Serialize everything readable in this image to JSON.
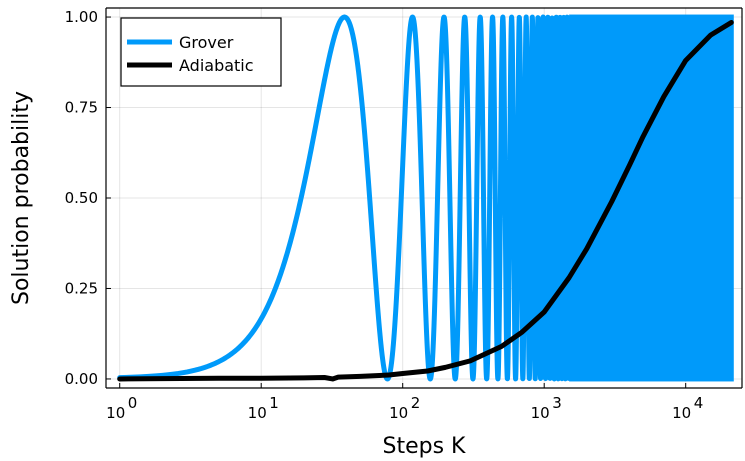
{
  "chart_data": {
    "type": "line",
    "title": "",
    "xlabel": "Steps K",
    "ylabel": "Solution probability",
    "xscale": "log10",
    "xlim": [
      0.8,
      25000
    ],
    "ylim": [
      -0.025,
      1.025
    ],
    "grid": true,
    "legend_position": "top-left",
    "x_ticks": [
      {
        "base": "10",
        "exp": "0",
        "value": 1
      },
      {
        "base": "10",
        "exp": "1",
        "value": 10
      },
      {
        "base": "10",
        "exp": "2",
        "value": 100
      },
      {
        "base": "10",
        "exp": "3",
        "value": 1000
      },
      {
        "base": "10",
        "exp": "4",
        "value": 10000
      }
    ],
    "y_ticks": [
      {
        "label": "0.00",
        "value": 0
      },
      {
        "label": "0.25",
        "value": 0.25
      },
      {
        "label": "0.50",
        "value": 0.5
      },
      {
        "label": "0.75",
        "value": 0.75
      },
      {
        "label": "1.00",
        "value": 1
      }
    ],
    "series": [
      {
        "name": "Grover",
        "color": "#009AFA",
        "model": "sin2_angle_per_step",
        "angle_per_step": 0.02,
        "x_min": 1,
        "x_max": 21000,
        "fill_band_from_x": 1500
      },
      {
        "name": "Adiabatic",
        "color": "#000000",
        "x": [
          1,
          2,
          5,
          10,
          20,
          28,
          32,
          35,
          50,
          80,
          100,
          150,
          200,
          300,
          500,
          700,
          1000,
          1500,
          2000,
          3000,
          4000,
          5000,
          7000,
          10000,
          15000,
          21000
        ],
        "y": [
          0.0,
          0.001,
          0.002,
          0.002,
          0.003,
          0.004,
          0.0,
          0.005,
          0.007,
          0.011,
          0.015,
          0.022,
          0.032,
          0.05,
          0.09,
          0.13,
          0.185,
          0.28,
          0.36,
          0.49,
          0.59,
          0.67,
          0.78,
          0.88,
          0.95,
          0.985
        ]
      }
    ]
  }
}
